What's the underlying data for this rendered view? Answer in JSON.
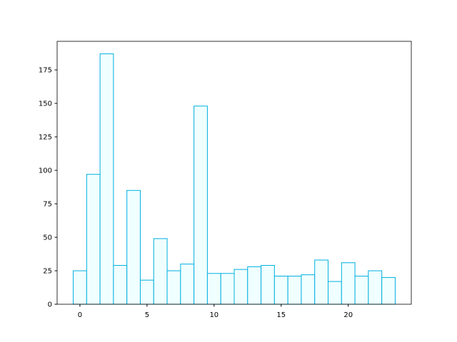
{
  "chart_data": {
    "type": "histogram",
    "bins": [
      -0.5,
      0.5,
      1.5,
      2.5,
      3.5,
      4.5,
      5.5,
      6.5,
      7.5,
      8.5,
      9.5,
      10.5,
      11.5,
      12.5,
      13.5,
      14.5,
      15.5,
      16.5,
      17.5,
      18.5,
      19.5,
      20.5,
      21.5,
      22.5,
      23.5
    ],
    "values": [
      25,
      97,
      187,
      29,
      85,
      18,
      49,
      25,
      30,
      148,
      23,
      23,
      26,
      28,
      29,
      21,
      21,
      22,
      33,
      17,
      31,
      21,
      25,
      20
    ],
    "color": "#f0ffff",
    "edgecolor": "#00b0e0",
    "xlim": [
      -1.7,
      24.7
    ],
    "xticks": [
      0,
      5,
      10,
      15,
      20
    ],
    "ylim": [
      0,
      196.35
    ],
    "yticks": [
      0,
      25,
      50,
      75,
      100,
      125,
      150,
      175
    ],
    "grid": false
  }
}
